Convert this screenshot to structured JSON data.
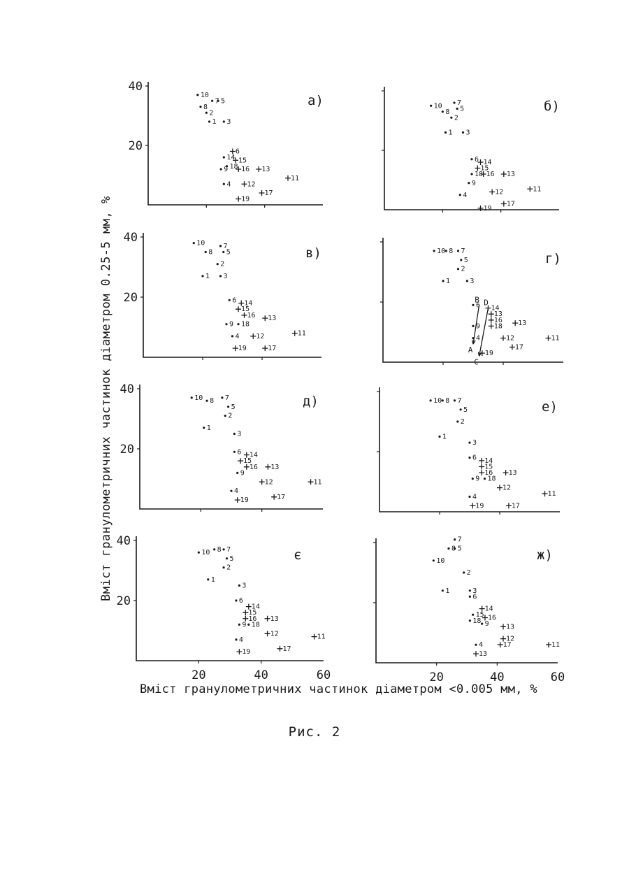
{
  "figure": {
    "ylabel": "Вміст гранулометричних частинок діаметром 0.25-5 мм, %",
    "xlabel": "Вміст гранулометричних частинок діаметром <0.005 мм, %",
    "caption": "Рис. 2"
  },
  "chart_data": [
    {
      "type": "scatter",
      "panel_label": "а)",
      "xlim": [
        0,
        60
      ],
      "ylim": [
        0,
        40
      ],
      "x_ticks": [],
      "y_ticks": [
        "20",
        "40"
      ],
      "points": [
        {
          "label": "10",
          "x": 17,
          "y": 37,
          "marker": "dot"
        },
        {
          "label": "7",
          "x": 22,
          "y": 35,
          "marker": "dot"
        },
        {
          "label": "5",
          "x": 24,
          "y": 35,
          "marker": "dot"
        },
        {
          "label": "8",
          "x": 18,
          "y": 33,
          "marker": "dot"
        },
        {
          "label": "2",
          "x": 20,
          "y": 31,
          "marker": "dot"
        },
        {
          "label": "1",
          "x": 21,
          "y": 28,
          "marker": "dot"
        },
        {
          "label": "3",
          "x": 26,
          "y": 28,
          "marker": "dot"
        },
        {
          "label": "6",
          "x": 29,
          "y": 18,
          "marker": "plus"
        },
        {
          "label": "14",
          "x": 26,
          "y": 16,
          "marker": "dot"
        },
        {
          "label": "15",
          "x": 30,
          "y": 15,
          "marker": "plus"
        },
        {
          "label": "18",
          "x": 27,
          "y": 13,
          "marker": "dot"
        },
        {
          "label": "16",
          "x": 31,
          "y": 12,
          "marker": "plus"
        },
        {
          "label": "13",
          "x": 38,
          "y": 12,
          "marker": "plus"
        },
        {
          "label": "9",
          "x": 25,
          "y": 12,
          "marker": "dot"
        },
        {
          "label": "11",
          "x": 48,
          "y": 9,
          "marker": "plus"
        },
        {
          "label": "4",
          "x": 26,
          "y": 7,
          "marker": "dot"
        },
        {
          "label": "12",
          "x": 33,
          "y": 7,
          "marker": "plus"
        },
        {
          "label": "17",
          "x": 39,
          "y": 4,
          "marker": "plus"
        },
        {
          "label": "19",
          "x": 31,
          "y": 2,
          "marker": "plus"
        }
      ]
    },
    {
      "type": "scatter",
      "panel_label": "б)",
      "xlim": [
        0,
        60
      ],
      "ylim": [
        0,
        40
      ],
      "x_ticks": [],
      "y_ticks": [],
      "points": [
        {
          "label": "10",
          "x": 16,
          "y": 35,
          "marker": "dot"
        },
        {
          "label": "7",
          "x": 24,
          "y": 36,
          "marker": "dot"
        },
        {
          "label": "8",
          "x": 20,
          "y": 33,
          "marker": "dot"
        },
        {
          "label": "5",
          "x": 25,
          "y": 34,
          "marker": "dot"
        },
        {
          "label": "2",
          "x": 23,
          "y": 31,
          "marker": "dot"
        },
        {
          "label": "1",
          "x": 21,
          "y": 26,
          "marker": "dot"
        },
        {
          "label": "3",
          "x": 27,
          "y": 26,
          "marker": "dot"
        },
        {
          "label": "6",
          "x": 30,
          "y": 17,
          "marker": "dot"
        },
        {
          "label": "14",
          "x": 33,
          "y": 16,
          "marker": "plus"
        },
        {
          "label": "15",
          "x": 32,
          "y": 14,
          "marker": "plus"
        },
        {
          "label": "18",
          "x": 30,
          "y": 12,
          "marker": "dot"
        },
        {
          "label": "16",
          "x": 34,
          "y": 12,
          "marker": "plus"
        },
        {
          "label": "13",
          "x": 41,
          "y": 12,
          "marker": "plus"
        },
        {
          "label": "9",
          "x": 29,
          "y": 9,
          "marker": "dot"
        },
        {
          "label": "4",
          "x": 26,
          "y": 5,
          "marker": "dot"
        },
        {
          "label": "12",
          "x": 37,
          "y": 6,
          "marker": "plus"
        },
        {
          "label": "11",
          "x": 50,
          "y": 7,
          "marker": "plus"
        },
        {
          "label": "17",
          "x": 41,
          "y": 2,
          "marker": "plus"
        },
        {
          "label": "19",
          "x": 33,
          "y": 0.5,
          "marker": "plus"
        }
      ]
    },
    {
      "type": "scatter",
      "panel_label": "в)",
      "xlim": [
        0,
        60
      ],
      "ylim": [
        0,
        40
      ],
      "x_ticks": [],
      "y_ticks": [
        "20",
        "40"
      ],
      "points": [
        {
          "label": "10",
          "x": 17,
          "y": 38,
          "marker": "dot"
        },
        {
          "label": "7",
          "x": 26,
          "y": 37,
          "marker": "dot"
        },
        {
          "label": "8",
          "x": 21,
          "y": 35,
          "marker": "dot"
        },
        {
          "label": "5",
          "x": 27,
          "y": 35,
          "marker": "dot"
        },
        {
          "label": "2",
          "x": 25,
          "y": 31,
          "marker": "dot"
        },
        {
          "label": "1",
          "x": 20,
          "y": 27,
          "marker": "dot"
        },
        {
          "label": "3",
          "x": 26,
          "y": 27,
          "marker": "dot"
        },
        {
          "label": "6",
          "x": 29,
          "y": 19,
          "marker": "dot"
        },
        {
          "label": "14",
          "x": 33,
          "y": 18,
          "marker": "plus"
        },
        {
          "label": "15",
          "x": 32,
          "y": 16,
          "marker": "plus"
        },
        {
          "label": "16",
          "x": 34,
          "y": 14,
          "marker": "plus"
        },
        {
          "label": "13",
          "x": 41,
          "y": 13,
          "marker": "plus"
        },
        {
          "label": "9",
          "x": 28,
          "y": 11,
          "marker": "dot"
        },
        {
          "label": "18",
          "x": 32,
          "y": 11,
          "marker": "dot"
        },
        {
          "label": "4",
          "x": 30,
          "y": 7,
          "marker": "dot"
        },
        {
          "label": "12",
          "x": 37,
          "y": 7,
          "marker": "plus"
        },
        {
          "label": "11",
          "x": 51,
          "y": 8,
          "marker": "plus"
        },
        {
          "label": "19",
          "x": 31,
          "y": 3,
          "marker": "plus"
        },
        {
          "label": "17",
          "x": 41,
          "y": 3,
          "marker": "plus"
        }
      ]
    },
    {
      "type": "scatter",
      "panel_label": "г)",
      "xlim": [
        0,
        60
      ],
      "ylim": [
        0,
        40
      ],
      "x_ticks": [],
      "y_ticks": [],
      "points": [
        {
          "label": "10",
          "x": 17,
          "y": 37,
          "marker": "dot"
        },
        {
          "label": "8",
          "x": 21,
          "y": 37,
          "marker": "dot"
        },
        {
          "label": "7",
          "x": 25,
          "y": 37,
          "marker": "dot"
        },
        {
          "label": "5",
          "x": 26,
          "y": 34,
          "marker": "dot"
        },
        {
          "label": "2",
          "x": 25,
          "y": 31,
          "marker": "dot"
        },
        {
          "label": "1",
          "x": 20,
          "y": 27,
          "marker": "dot"
        },
        {
          "label": "3",
          "x": 28,
          "y": 27,
          "marker": "dot"
        },
        {
          "label": "6",
          "x": 30,
          "y": 19,
          "marker": "dot"
        },
        {
          "label": "14",
          "x": 35,
          "y": 18,
          "marker": "plus"
        },
        {
          "label": "13",
          "x": 36,
          "y": 16,
          "marker": "plus"
        },
        {
          "label": "16",
          "x": 36,
          "y": 14,
          "marker": "plus"
        },
        {
          "label": "18",
          "x": 36,
          "y": 12,
          "marker": "plus"
        },
        {
          "label": "9",
          "x": 30,
          "y": 12,
          "marker": "dot"
        },
        {
          "label": "13",
          "x": 44,
          "y": 13,
          "marker": "plus"
        },
        {
          "label": "4",
          "x": 30,
          "y": 8,
          "marker": "dot"
        },
        {
          "label": "12",
          "x": 40,
          "y": 8,
          "marker": "plus"
        },
        {
          "label": "11",
          "x": 55,
          "y": 8,
          "marker": "plus"
        },
        {
          "label": "17",
          "x": 43,
          "y": 5,
          "marker": "plus"
        },
        {
          "label": "19",
          "x": 33,
          "y": 3,
          "marker": "plus"
        }
      ],
      "annotations": [
        {
          "from": "B",
          "to": "A",
          "x1": 32,
          "y1": 19,
          "x2": 30,
          "y2": 6
        },
        {
          "from": "D",
          "to": "C",
          "x1": 35,
          "y1": 18,
          "x2": 32,
          "y2": 2
        }
      ]
    },
    {
      "type": "scatter",
      "panel_label": "д)",
      "xlim": [
        0,
        60
      ],
      "ylim": [
        0,
        40
      ],
      "x_ticks": [],
      "y_ticks": [
        "20",
        "40"
      ],
      "points": [
        {
          "label": "10",
          "x": 17,
          "y": 37,
          "marker": "dot"
        },
        {
          "label": "8",
          "x": 22,
          "y": 36,
          "marker": "dot"
        },
        {
          "label": "7",
          "x": 27,
          "y": 37,
          "marker": "dot"
        },
        {
          "label": "5",
          "x": 29,
          "y": 34,
          "marker": "dot"
        },
        {
          "label": "2",
          "x": 28,
          "y": 31,
          "marker": "dot"
        },
        {
          "label": "1",
          "x": 21,
          "y": 27,
          "marker": "dot"
        },
        {
          "label": "3",
          "x": 31,
          "y": 25,
          "marker": "dot"
        },
        {
          "label": "6",
          "x": 31,
          "y": 19,
          "marker": "dot"
        },
        {
          "label": "14",
          "x": 35,
          "y": 18,
          "marker": "plus"
        },
        {
          "label": "15",
          "x": 33,
          "y": 16,
          "marker": "plus"
        },
        {
          "label": "16",
          "x": 35,
          "y": 14,
          "marker": "plus"
        },
        {
          "label": "13",
          "x": 42,
          "y": 14,
          "marker": "plus"
        },
        {
          "label": "9",
          "x": 32,
          "y": 12,
          "marker": "dot"
        },
        {
          "label": "12",
          "x": 40,
          "y": 9,
          "marker": "plus"
        },
        {
          "label": "11",
          "x": 56,
          "y": 9,
          "marker": "plus"
        },
        {
          "label": "4",
          "x": 30,
          "y": 6,
          "marker": "dot"
        },
        {
          "label": "19",
          "x": 32,
          "y": 3,
          "marker": "plus"
        },
        {
          "label": "17",
          "x": 44,
          "y": 4,
          "marker": "plus"
        }
      ]
    },
    {
      "type": "scatter",
      "panel_label": "е)",
      "xlim": [
        0,
        60
      ],
      "ylim": [
        0,
        40
      ],
      "x_ticks": [],
      "y_ticks": [],
      "points": [
        {
          "label": "10",
          "x": 17,
          "y": 37,
          "marker": "dot"
        },
        {
          "label": "8",
          "x": 21,
          "y": 37,
          "marker": "dot"
        },
        {
          "label": "7",
          "x": 25,
          "y": 37,
          "marker": "dot"
        },
        {
          "label": "5",
          "x": 27,
          "y": 34,
          "marker": "dot"
        },
        {
          "label": "2",
          "x": 26,
          "y": 30,
          "marker": "dot"
        },
        {
          "label": "1",
          "x": 20,
          "y": 25,
          "marker": "dot"
        },
        {
          "label": "3",
          "x": 30,
          "y": 23,
          "marker": "dot"
        },
        {
          "label": "6",
          "x": 30,
          "y": 18,
          "marker": "dot"
        },
        {
          "label": "14",
          "x": 34,
          "y": 17,
          "marker": "plus"
        },
        {
          "label": "15",
          "x": 34,
          "y": 15,
          "marker": "plus"
        },
        {
          "label": "16",
          "x": 34,
          "y": 13,
          "marker": "plus"
        },
        {
          "label": "13",
          "x": 42,
          "y": 13,
          "marker": "plus"
        },
        {
          "label": "9",
          "x": 31,
          "y": 11,
          "marker": "dot"
        },
        {
          "label": "18",
          "x": 35,
          "y": 11,
          "marker": "dot"
        },
        {
          "label": "12",
          "x": 40,
          "y": 8,
          "marker": "plus"
        },
        {
          "label": "11",
          "x": 55,
          "y": 6,
          "marker": "plus"
        },
        {
          "label": "4",
          "x": 30,
          "y": 5,
          "marker": "dot"
        },
        {
          "label": "19",
          "x": 31,
          "y": 2,
          "marker": "plus"
        },
        {
          "label": "17",
          "x": 43,
          "y": 2,
          "marker": "plus"
        }
      ]
    },
    {
      "type": "scatter",
      "panel_label": "є",
      "xlim": [
        0,
        60
      ],
      "ylim": [
        0,
        40
      ],
      "x_ticks": [
        "20",
        "40",
        "60"
      ],
      "y_ticks": [
        "20",
        "40"
      ],
      "points": [
        {
          "label": "10",
          "x": 20,
          "y": 36,
          "marker": "dot"
        },
        {
          "label": "8",
          "x": 25,
          "y": 37,
          "marker": "dot"
        },
        {
          "label": "7",
          "x": 28,
          "y": 37,
          "marker": "dot"
        },
        {
          "label": "5",
          "x": 29,
          "y": 34,
          "marker": "dot"
        },
        {
          "label": "2",
          "x": 28,
          "y": 31,
          "marker": "dot"
        },
        {
          "label": "1",
          "x": 23,
          "y": 27,
          "marker": "dot"
        },
        {
          "label": "3",
          "x": 33,
          "y": 25,
          "marker": "dot"
        },
        {
          "label": "6",
          "x": 32,
          "y": 20,
          "marker": "dot"
        },
        {
          "label": "14",
          "x": 36,
          "y": 18,
          "marker": "plus"
        },
        {
          "label": "15",
          "x": 35,
          "y": 16,
          "marker": "plus"
        },
        {
          "label": "16",
          "x": 35,
          "y": 14,
          "marker": "plus"
        },
        {
          "label": "13",
          "x": 42,
          "y": 14,
          "marker": "plus"
        },
        {
          "label": "9",
          "x": 33,
          "y": 12,
          "marker": "dot"
        },
        {
          "label": "18",
          "x": 36,
          "y": 12,
          "marker": "dot"
        },
        {
          "label": "12",
          "x": 42,
          "y": 9,
          "marker": "plus"
        },
        {
          "label": "11",
          "x": 57,
          "y": 8,
          "marker": "plus"
        },
        {
          "label": "4",
          "x": 32,
          "y": 7,
          "marker": "dot"
        },
        {
          "label": "19",
          "x": 33,
          "y": 3,
          "marker": "plus"
        },
        {
          "label": "17",
          "x": 46,
          "y": 4,
          "marker": "plus"
        }
      ]
    },
    {
      "type": "scatter",
      "panel_label": "ж)",
      "xlim": [
        0,
        60
      ],
      "ylim": [
        0,
        40
      ],
      "x_ticks": [
        "20",
        "40",
        "60"
      ],
      "y_ticks": [],
      "points": [
        {
          "label": "7",
          "x": 26,
          "y": 41,
          "marker": "dot"
        },
        {
          "label": "8",
          "x": 24,
          "y": 38,
          "marker": "dot"
        },
        {
          "label": "5",
          "x": 26,
          "y": 38,
          "marker": "dot"
        },
        {
          "label": "10",
          "x": 19,
          "y": 34,
          "marker": "dot"
        },
        {
          "label": "2",
          "x": 29,
          "y": 30,
          "marker": "dot"
        },
        {
          "label": "3",
          "x": 31,
          "y": 24,
          "marker": "dot"
        },
        {
          "label": "1",
          "x": 22,
          "y": 24,
          "marker": "dot"
        },
        {
          "label": "6",
          "x": 31,
          "y": 22,
          "marker": "dot"
        },
        {
          "label": "14",
          "x": 35,
          "y": 18,
          "marker": "plus"
        },
        {
          "label": "15",
          "x": 32,
          "y": 16,
          "marker": "dot"
        },
        {
          "label": "16",
          "x": 36,
          "y": 15,
          "marker": "plus"
        },
        {
          "label": "18",
          "x": 31,
          "y": 14,
          "marker": "dot"
        },
        {
          "label": "9",
          "x": 35,
          "y": 13,
          "marker": "dot"
        },
        {
          "label": "13",
          "x": 42,
          "y": 12,
          "marker": "plus"
        },
        {
          "label": "12",
          "x": 42,
          "y": 8,
          "marker": "plus"
        },
        {
          "label": "4",
          "x": 33,
          "y": 6,
          "marker": "dot"
        },
        {
          "label": "17",
          "x": 41,
          "y": 6,
          "marker": "plus"
        },
        {
          "label": "11",
          "x": 57,
          "y": 6,
          "marker": "plus"
        },
        {
          "label": "13",
          "x": 33,
          "y": 3,
          "marker": "plus"
        }
      ]
    }
  ]
}
